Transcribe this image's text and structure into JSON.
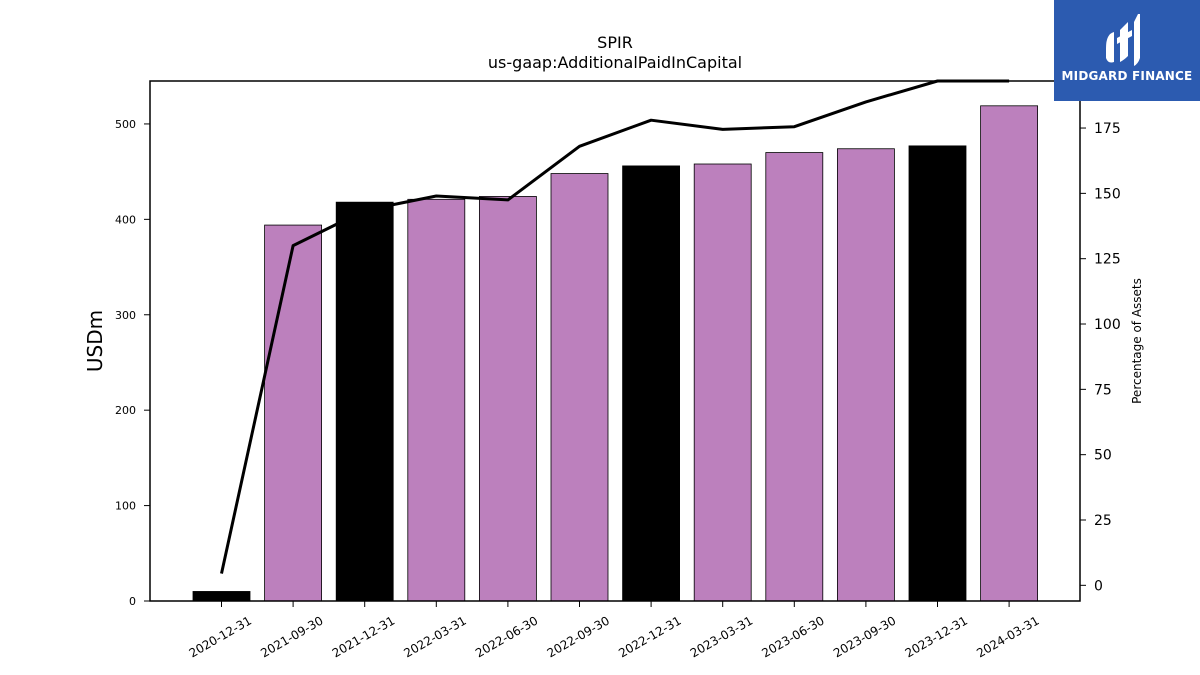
{
  "logo": {
    "text": "MIDGARD FINANCE",
    "background": "#2c5bb0"
  },
  "chart_data": {
    "type": "bar",
    "title": "SPIR",
    "subtitle": "us-gaap:AdditionalPaidInCapital",
    "ylabel": "USDm",
    "y2label": "Percentage of Assets",
    "categories": [
      "2020-12-31",
      "2021-09-30",
      "2021-12-31",
      "2022-03-31",
      "2022-06-30",
      "2022-09-30",
      "2022-12-31",
      "2023-03-31",
      "2023-06-30",
      "2023-09-30",
      "2023-12-31",
      "2024-03-31"
    ],
    "values": [
      10,
      394,
      418,
      421,
      424,
      448,
      456,
      458,
      470,
      474,
      477,
      519
    ],
    "bar_colors": [
      "#000000",
      "#bc80bd",
      "#000000",
      "#bc80bd",
      "#bc80bd",
      "#bc80bd",
      "#000000",
      "#bc80bd",
      "#bc80bd",
      "#bc80bd",
      "#000000",
      "#bc80bd"
    ],
    "line": {
      "name": "Percentage of Assets",
      "color": "#000000",
      "values": [
        4.5,
        130,
        143.5,
        149,
        147.5,
        168,
        178,
        174.5,
        175.5,
        185,
        193,
        193
      ]
    },
    "ylim": [
      0,
      545
    ],
    "y2lim": [
      -6,
      193
    ],
    "yticks": [
      0,
      100,
      200,
      300,
      400,
      500
    ],
    "y2ticks": [
      0,
      25,
      50,
      75,
      100,
      125,
      150,
      175
    ],
    "grid": false,
    "legend": "none"
  }
}
